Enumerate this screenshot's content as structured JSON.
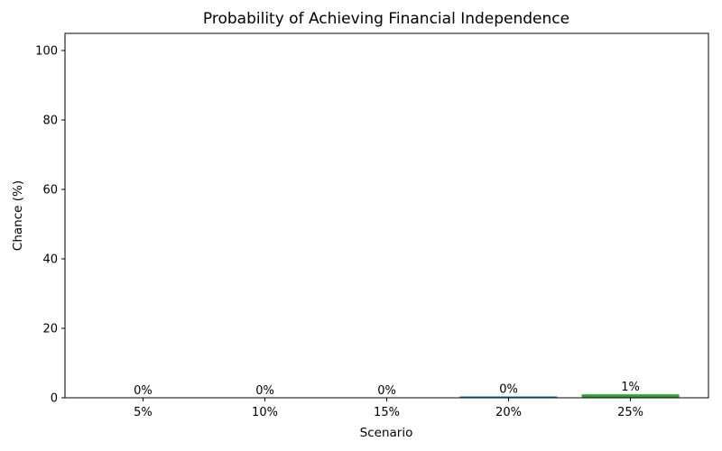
{
  "chart_data": {
    "type": "bar",
    "title": "Probability of Achieving Financial Independence",
    "xlabel": "Scenario",
    "ylabel": "Chance (%)",
    "categories": [
      "5%",
      "10%",
      "15%",
      "20%",
      "25%"
    ],
    "values": [
      0,
      0,
      0,
      0.4,
      1
    ],
    "bar_labels": [
      "0%",
      "0%",
      "0%",
      "0%",
      "1%"
    ],
    "bar_colors": [
      "#1f77b4",
      "#1f77b4",
      "#1f77b4",
      "#1f77b4",
      "#2ca02c"
    ],
    "ylim": [
      0,
      105
    ],
    "yticks": [
      0,
      20,
      40,
      60,
      80,
      100
    ],
    "bar_width_fraction": 0.8,
    "grid": false,
    "legend": "none",
    "axis_color": "#000000",
    "text_color": "#000000",
    "background_color": "#ffffff"
  }
}
